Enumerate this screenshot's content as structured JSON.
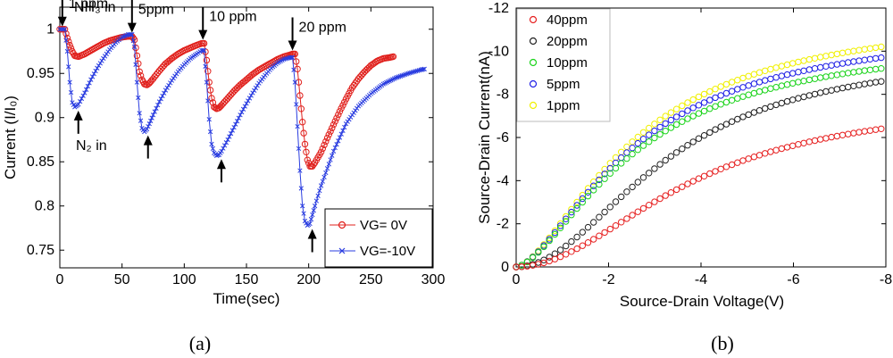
{
  "chart_data": [
    {
      "type": "line",
      "panel_caption": "(a)",
      "xlabel": "Time(sec)",
      "ylabel": "Current (I/I₀)",
      "xlim": [
        0,
        300
      ],
      "ylim": [
        0.73,
        1.025
      ],
      "xticks": [
        "0",
        "50",
        "100",
        "150",
        "200",
        "250",
        "300"
      ],
      "yticks": [
        "0.75",
        "0.8",
        "0.85",
        "0.9",
        "0.95",
        "1"
      ],
      "series": [
        {
          "name": "VG= 0V",
          "color": "#e0201c",
          "marker": "circle",
          "x": [
            0,
            4,
            6,
            8,
            10,
            12,
            15,
            20,
            25,
            30,
            35,
            40,
            45,
            50,
            55,
            58,
            60,
            62,
            64,
            66,
            68,
            70,
            72,
            75,
            80,
            85,
            90,
            95,
            100,
            105,
            110,
            114,
            116,
            118,
            120,
            122,
            124,
            126,
            128,
            130,
            135,
            140,
            145,
            150,
            155,
            160,
            165,
            170,
            175,
            180,
            185,
            187,
            189,
            191,
            193,
            195,
            197,
            199,
            201,
            203,
            205,
            210,
            215,
            220,
            225,
            230,
            235,
            240,
            245,
            250,
            255,
            260,
            265,
            268
          ],
          "y": [
            1.0,
            1.0,
            0.99,
            0.982,
            0.975,
            0.97,
            0.969,
            0.972,
            0.976,
            0.98,
            0.984,
            0.987,
            0.989,
            0.991,
            0.992,
            0.992,
            0.988,
            0.97,
            0.952,
            0.943,
            0.938,
            0.937,
            0.939,
            0.944,
            0.953,
            0.961,
            0.967,
            0.972,
            0.976,
            0.979,
            0.982,
            0.984,
            0.984,
            0.965,
            0.94,
            0.922,
            0.912,
            0.91,
            0.911,
            0.914,
            0.922,
            0.93,
            0.937,
            0.943,
            0.949,
            0.954,
            0.958,
            0.962,
            0.966,
            0.969,
            0.971,
            0.972,
            0.972,
            0.955,
            0.925,
            0.895,
            0.87,
            0.852,
            0.845,
            0.845,
            0.849,
            0.861,
            0.877,
            0.892,
            0.907,
            0.921,
            0.934,
            0.944,
            0.952,
            0.959,
            0.964,
            0.967,
            0.968,
            0.969
          ]
        },
        {
          "name": "VG=-10V",
          "color": "#2a3de0",
          "marker": "x",
          "x": [
            0,
            4,
            6,
            8,
            10,
            12,
            15,
            20,
            25,
            30,
            35,
            40,
            45,
            50,
            55,
            58,
            60,
            62,
            64,
            66,
            68,
            70,
            72,
            75,
            80,
            85,
            90,
            95,
            100,
            105,
            110,
            114,
            116,
            118,
            120,
            122,
            124,
            126,
            128,
            130,
            135,
            140,
            145,
            150,
            155,
            160,
            165,
            170,
            175,
            180,
            185,
            187,
            189,
            191,
            193,
            195,
            197,
            199,
            201,
            203,
            205,
            210,
            220,
            230,
            240,
            250,
            260,
            270,
            280,
            290,
            293
          ],
          "y": [
            1.0,
            1.0,
            0.975,
            0.94,
            0.917,
            0.912,
            0.915,
            0.928,
            0.943,
            0.956,
            0.967,
            0.977,
            0.985,
            0.991,
            0.994,
            0.994,
            0.98,
            0.94,
            0.905,
            0.888,
            0.884,
            0.887,
            0.893,
            0.903,
            0.918,
            0.931,
            0.942,
            0.952,
            0.96,
            0.967,
            0.972,
            0.976,
            0.976,
            0.94,
            0.898,
            0.87,
            0.86,
            0.857,
            0.858,
            0.862,
            0.875,
            0.889,
            0.903,
            0.916,
            0.928,
            0.939,
            0.948,
            0.956,
            0.962,
            0.966,
            0.968,
            0.968,
            0.94,
            0.89,
            0.84,
            0.8,
            0.783,
            0.778,
            0.78,
            0.79,
            0.8,
            0.823,
            0.862,
            0.893,
            0.913,
            0.927,
            0.938,
            0.945,
            0.95,
            0.954,
            0.955
          ]
        }
      ],
      "annotations": {
        "nh3_in": "NH₃ in",
        "n2_in": "N₂ in",
        "ppm_labels": [
          {
            "text": "1 ppm",
            "x": 2,
            "y": 1.0
          },
          {
            "text": "5ppm",
            "x": 58,
            "y": 0.993
          },
          {
            "text": "10 ppm",
            "x": 115,
            "y": 0.985
          },
          {
            "text": "20 ppm",
            "x": 187,
            "y": 0.973
          }
        ],
        "n2_arrows": [
          {
            "x": 12,
            "y": 0.912
          },
          {
            "x": 68,
            "y": 0.884
          },
          {
            "x": 127,
            "y": 0.857
          },
          {
            "x": 200,
            "y": 0.778
          }
        ]
      },
      "legend": {
        "position": "bottom-right"
      }
    },
    {
      "type": "scatter",
      "panel_caption": "(b)",
      "xlabel": "Source-Drain Voltage(V)",
      "ylabel": "Source-Drain Current(nA)",
      "xlim": [
        0,
        -8
      ],
      "ylim": [
        0,
        -12
      ],
      "xticks": [
        "0",
        "-2",
        "-4",
        "-6",
        "-8"
      ],
      "yticks": [
        "0",
        "-2",
        "-4",
        "-6",
        "-8",
        "-10",
        "-12"
      ],
      "series": [
        {
          "name": "40ppm",
          "color": "#e62020",
          "x_max": -7.9,
          "y_max": -6.4,
          "x_half": -3.8,
          "alpha": 2.0
        },
        {
          "name": "20ppm",
          "color": "#222222",
          "x_max": -7.9,
          "y_max": -8.6,
          "x_half": -3.3,
          "alpha": 2.0
        },
        {
          "name": "10ppm",
          "color": "#1ad31a",
          "x_max": -7.9,
          "y_max": -9.2,
          "x_half": -2.6,
          "alpha": 1.6
        },
        {
          "name": "5ppm",
          "color": "#2020e6",
          "x_max": -7.9,
          "y_max": -9.7,
          "x_half": -2.6,
          "alpha": 1.6
        },
        {
          "name": "1ppm",
          "color": "#f0f000",
          "x_max": -7.9,
          "y_max": -10.2,
          "x_half": -2.6,
          "alpha": 1.6
        }
      ],
      "legend": {
        "position": "top-left"
      }
    }
  ]
}
